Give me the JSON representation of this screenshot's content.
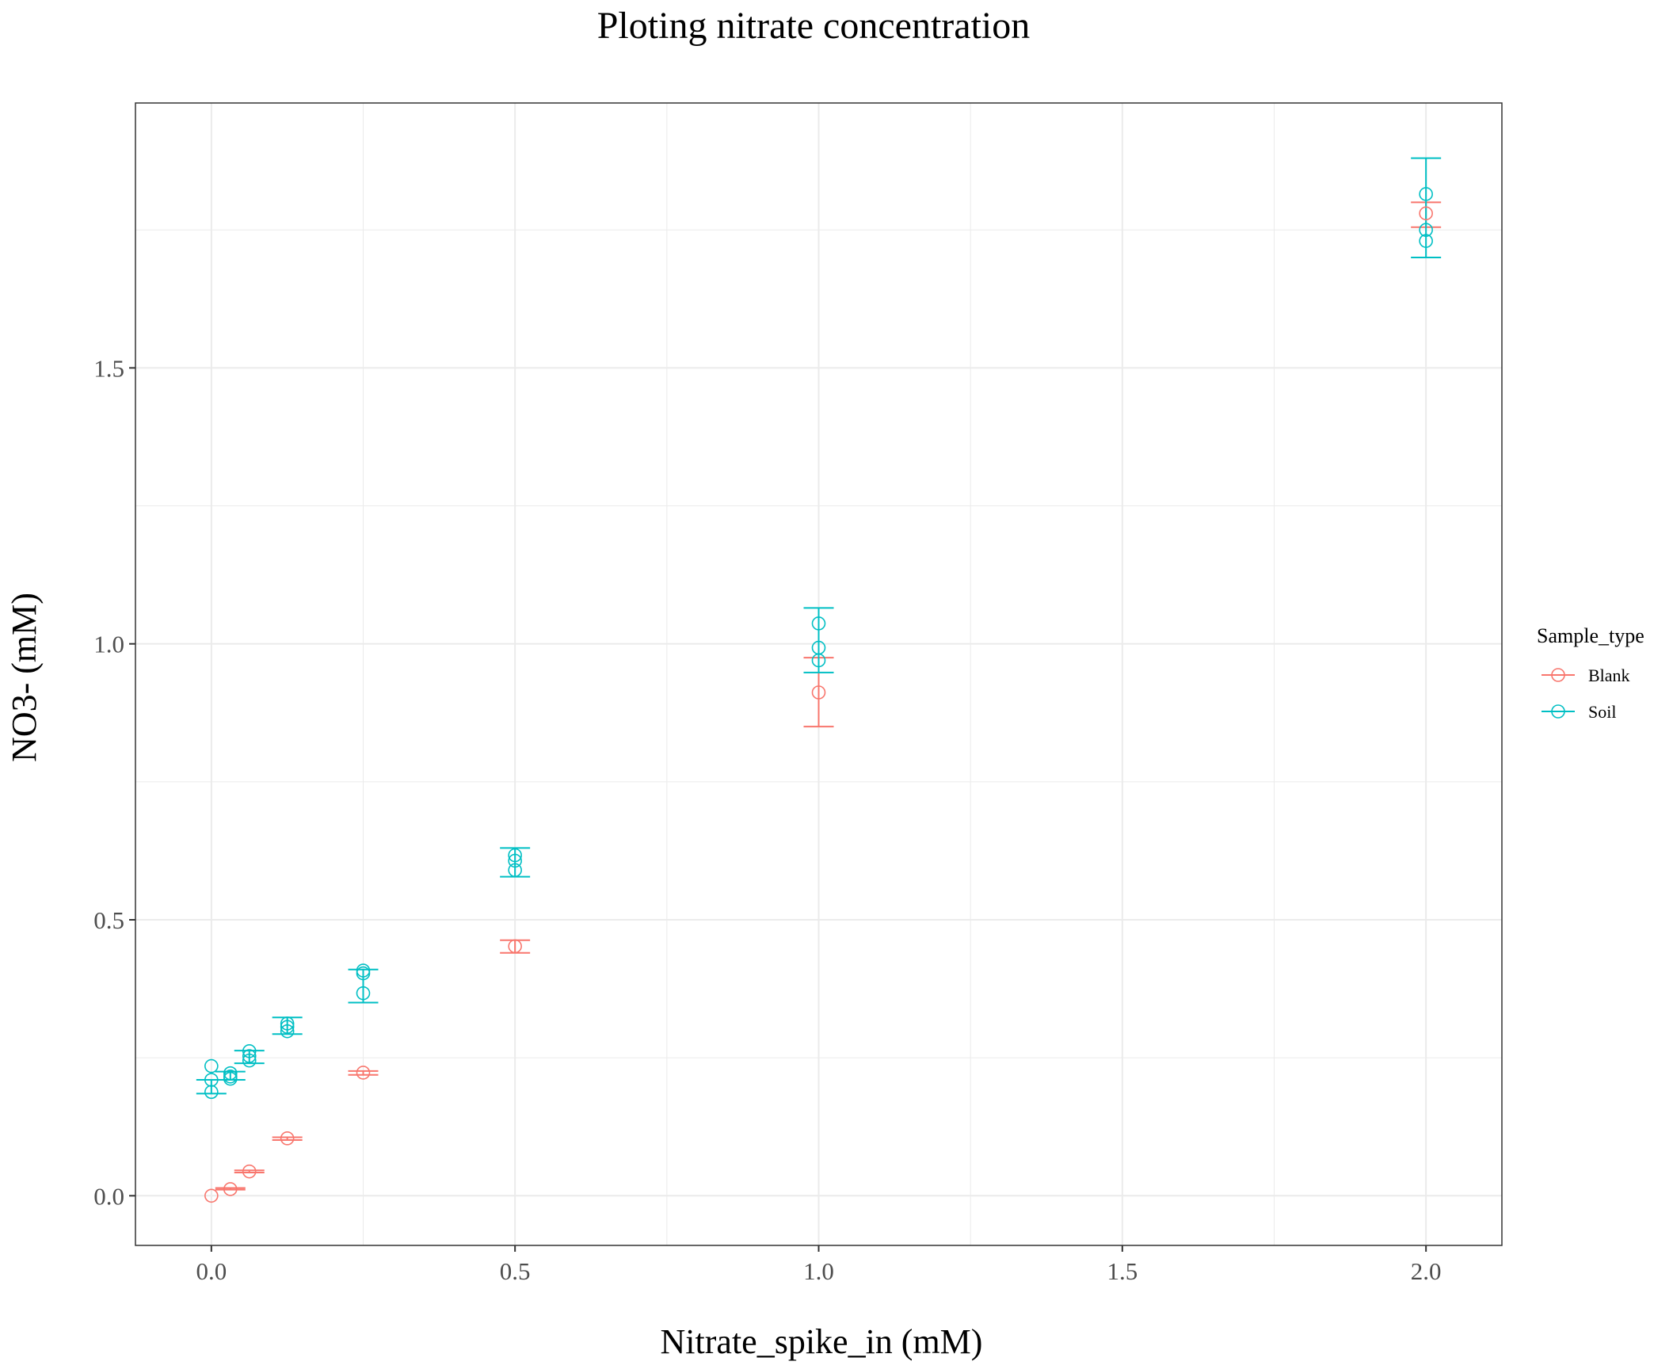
{
  "colors": {
    "Blank": "#F8766D",
    "Soil": "#00BFC4",
    "grid": "#ebebeb",
    "panel_border": "#333333",
    "tick_text": "#4d4d4d"
  },
  "chart_data": {
    "type": "scatter",
    "title": "Ploting nitrate concentration",
    "xlabel": "Nitrate_spike_in (mM)",
    "ylabel": "NO3- (mM)",
    "xlim": [
      -0.125,
      2.125
    ],
    "ylim": [
      -0.09,
      1.98
    ],
    "x_ticks": [
      0.0,
      0.5,
      1.0,
      1.5,
      2.0
    ],
    "x_tick_labels": [
      "0.0",
      "0.5",
      "1.0",
      "1.5",
      "2.0"
    ],
    "y_ticks": [
      0.0,
      0.5,
      1.0,
      1.5
    ],
    "y_tick_labels": [
      "0.0",
      "0.5",
      "1.0",
      "1.5"
    ],
    "x_minor": [
      0.25,
      0.75,
      1.25,
      1.75
    ],
    "y_minor": [
      0.25,
      0.75,
      1.25,
      1.75
    ],
    "grid": true,
    "legend": {
      "title": "Sample_type",
      "position": "right",
      "entries": [
        "Blank",
        "Soil"
      ]
    },
    "series": [
      {
        "name": "Blank",
        "points": [
          {
            "x": 0.0,
            "y": 0.0
          },
          {
            "x": 0.03125,
            "y": 0.012
          },
          {
            "x": 0.0625,
            "y": 0.044
          },
          {
            "x": 0.125,
            "y": 0.104
          },
          {
            "x": 0.25,
            "y": 0.223
          },
          {
            "x": 0.5,
            "y": 0.452
          },
          {
            "x": 1.0,
            "y": 0.912
          },
          {
            "x": 2.0,
            "y": 1.78
          }
        ],
        "errorbars": [
          {
            "x": 0.03125,
            "ymin": 0.011,
            "ymax": 0.014
          },
          {
            "x": 0.0625,
            "ymin": 0.042,
            "ymax": 0.046
          },
          {
            "x": 0.125,
            "ymin": 0.101,
            "ymax": 0.106
          },
          {
            "x": 0.25,
            "ymin": 0.219,
            "ymax": 0.226
          },
          {
            "x": 0.5,
            "ymin": 0.44,
            "ymax": 0.463
          },
          {
            "x": 1.0,
            "ymin": 0.85,
            "ymax": 0.975
          },
          {
            "x": 2.0,
            "ymin": 1.755,
            "ymax": 1.8
          }
        ]
      },
      {
        "name": "Soil",
        "points": [
          {
            "x": 0.0,
            "y": 0.235
          },
          {
            "x": 0.0,
            "y": 0.21
          },
          {
            "x": 0.0,
            "y": 0.188
          },
          {
            "x": 0.03125,
            "y": 0.222
          },
          {
            "x": 0.03125,
            "y": 0.216
          },
          {
            "x": 0.03125,
            "y": 0.212
          },
          {
            "x": 0.0625,
            "y": 0.262
          },
          {
            "x": 0.0625,
            "y": 0.253
          },
          {
            "x": 0.0625,
            "y": 0.245
          },
          {
            "x": 0.125,
            "y": 0.312
          },
          {
            "x": 0.125,
            "y": 0.306
          },
          {
            "x": 0.125,
            "y": 0.298
          },
          {
            "x": 0.25,
            "y": 0.408
          },
          {
            "x": 0.25,
            "y": 0.403
          },
          {
            "x": 0.25,
            "y": 0.367
          },
          {
            "x": 0.5,
            "y": 0.617
          },
          {
            "x": 0.5,
            "y": 0.607
          },
          {
            "x": 0.5,
            "y": 0.59
          },
          {
            "x": 1.0,
            "y": 1.037
          },
          {
            "x": 1.0,
            "y": 0.993
          },
          {
            "x": 1.0,
            "y": 0.97
          },
          {
            "x": 2.0,
            "y": 1.815
          },
          {
            "x": 2.0,
            "y": 1.75
          },
          {
            "x": 2.0,
            "y": 1.73
          }
        ],
        "errorbars": [
          {
            "x": 0.0,
            "ymin": 0.185,
            "ymax": 0.21
          },
          {
            "x": 0.03125,
            "ymin": 0.21,
            "ymax": 0.225
          },
          {
            "x": 0.0625,
            "ymin": 0.24,
            "ymax": 0.263
          },
          {
            "x": 0.125,
            "ymin": 0.293,
            "ymax": 0.323
          },
          {
            "x": 0.25,
            "ymin": 0.35,
            "ymax": 0.41
          },
          {
            "x": 0.5,
            "ymin": 0.578,
            "ymax": 0.63
          },
          {
            "x": 1.0,
            "ymin": 0.948,
            "ymax": 1.065
          },
          {
            "x": 2.0,
            "ymin": 1.7,
            "ymax": 1.88
          }
        ]
      }
    ]
  }
}
